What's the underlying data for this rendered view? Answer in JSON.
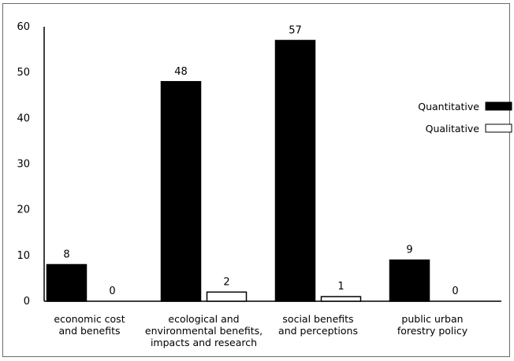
{
  "chart_data": {
    "type": "bar",
    "categories": [
      [
        "economic cost",
        "and benefits"
      ],
      [
        "ecological and",
        "environmental benefits,",
        "impacts and research"
      ],
      [
        "social benefits",
        "and perceptions"
      ],
      [
        "public urban",
        "forestry policy"
      ]
    ],
    "series": [
      {
        "name": "Quantitative",
        "values": [
          8,
          48,
          57,
          9
        ],
        "color": "#000000"
      },
      {
        "name": "Qualitative",
        "values": [
          0,
          2,
          1,
          0
        ],
        "color": "#ffffff"
      }
    ],
    "ylim": [
      0,
      60
    ],
    "yticks": [
      0,
      10,
      20,
      30,
      40,
      50,
      60
    ],
    "data_labels": true,
    "grid": false,
    "legend_position": "right"
  }
}
